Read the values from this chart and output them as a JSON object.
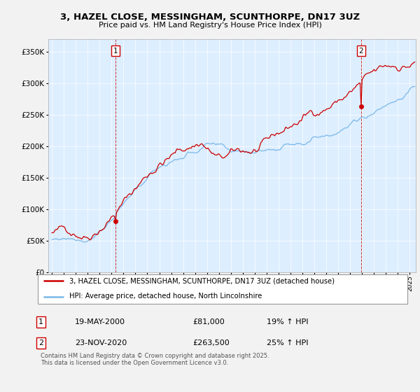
{
  "title": "3, HAZEL CLOSE, MESSINGHAM, SCUNTHORPE, DN17 3UZ",
  "subtitle": "Price paid vs. HM Land Registry's House Price Index (HPI)",
  "legend_line1": "3, HAZEL CLOSE, MESSINGHAM, SCUNTHORPE, DN17 3UZ (detached house)",
  "legend_line2": "HPI: Average price, detached house, North Lincolnshire",
  "annotation1_label": "1",
  "annotation1_date": "19-MAY-2000",
  "annotation1_price": "£81,000",
  "annotation1_hpi": "19% ↑ HPI",
  "annotation2_label": "2",
  "annotation2_date": "23-NOV-2020",
  "annotation2_price": "£263,500",
  "annotation2_hpi": "25% ↑ HPI",
  "footer": "Contains HM Land Registry data © Crown copyright and database right 2025.\nThis data is licensed under the Open Government Licence v3.0.",
  "hpi_color": "#7ab8e8",
  "price_color": "#cc0000",
  "chart_bg_color": "#ddeeff",
  "background_color": "#f0f0f0",
  "grid_color": "#ffffff",
  "ylim_min": 0,
  "ylim_max": 370000,
  "xlim_min": 1994.7,
  "xlim_max": 2025.5,
  "purchase1_year": 2000.37,
  "purchase1_value": 81000,
  "purchase2_year": 2020.9,
  "purchase2_value": 263500
}
